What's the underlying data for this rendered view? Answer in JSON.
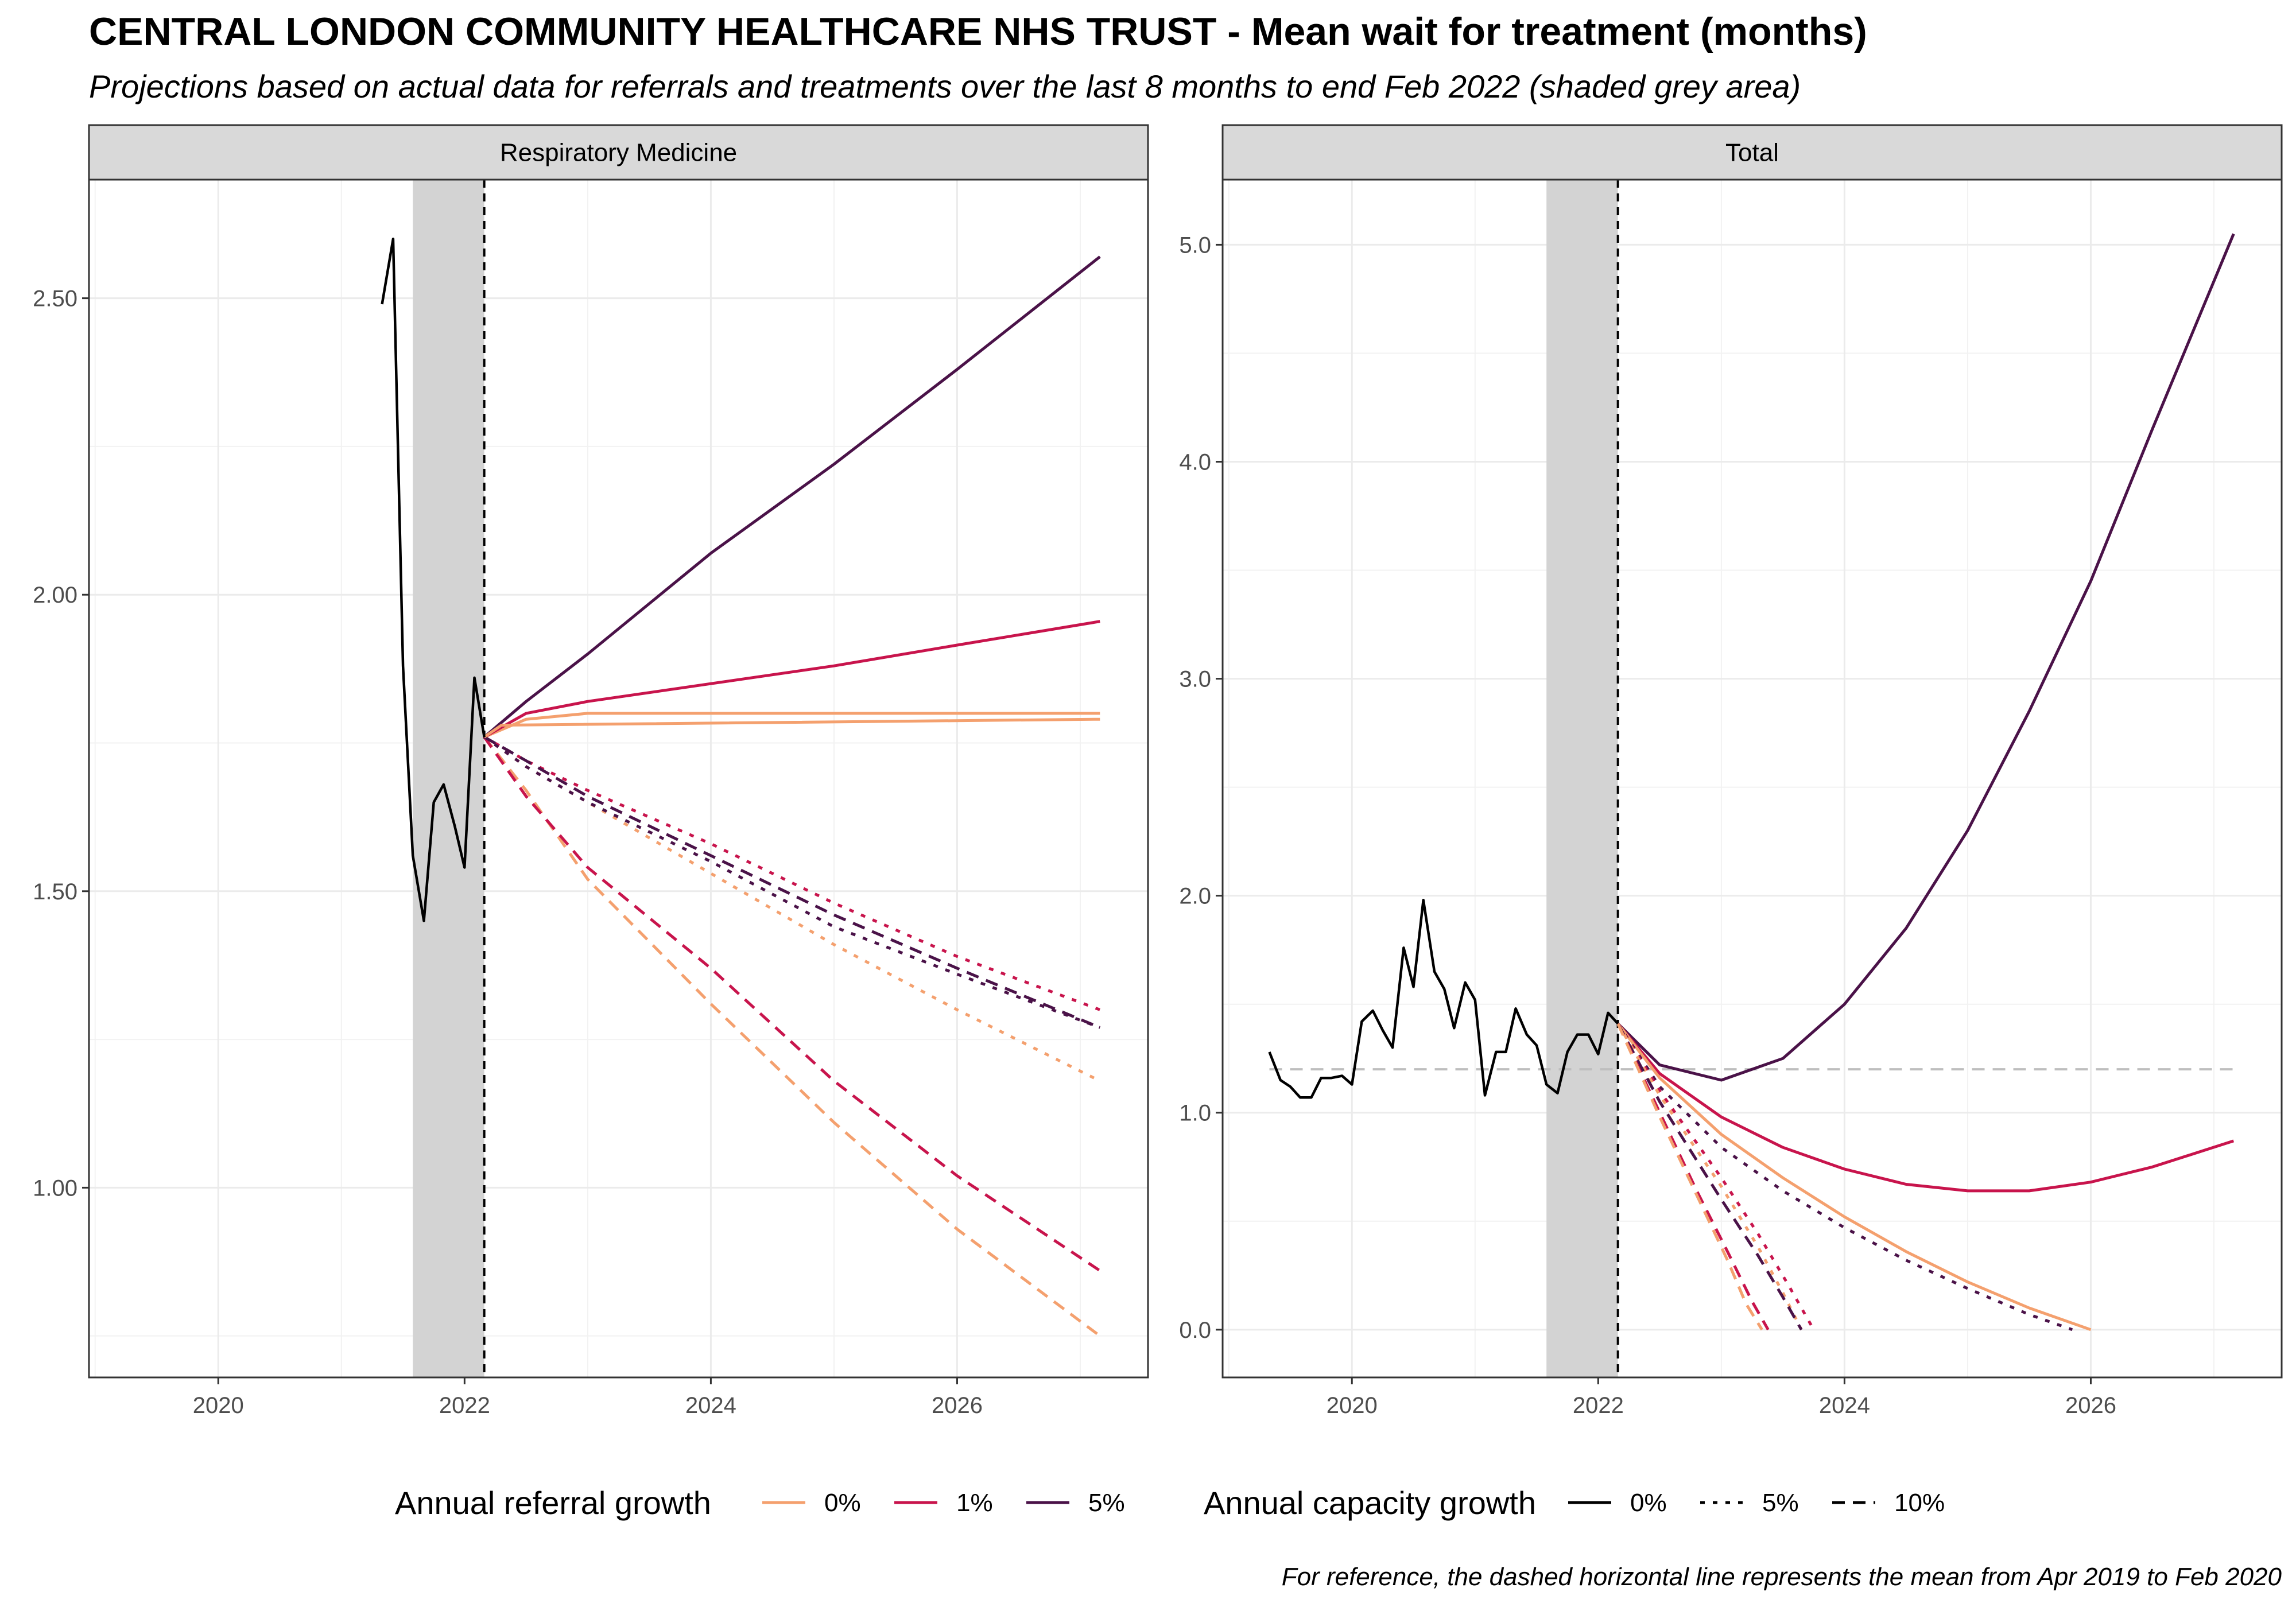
{
  "title": "CENTRAL LONDON COMMUNITY HEALTHCARE NHS TRUST - Mean wait for treatment (months)",
  "subtitle": "Projections based on actual data for referrals and treatments over the last 8 months to end Feb 2022 (shaded grey area)",
  "caption": "For reference, the dashed horizontal line represents the mean from Apr 2019 to Feb 2020",
  "colors": {
    "0%": "#F4A06E",
    "1%": "#C8144C",
    "5%": "#4A1248",
    "actual": "#000000",
    "shade": "#D3D3D3",
    "reference": "#BEBEBE"
  },
  "legends": {
    "referral": {
      "title": "Annual referral growth",
      "items": [
        "0%",
        "1%",
        "5%"
      ]
    },
    "capacity": {
      "title": "Annual capacity growth",
      "items": [
        "0%",
        "5%",
        "10%"
      ]
    }
  },
  "chart_data": [
    {
      "type": "line",
      "panel": "Respiratory Medicine",
      "xlabel": "",
      "ylabel": "",
      "xlim": [
        2018.95,
        2027.55
      ],
      "ylim": [
        0.68,
        2.7
      ],
      "xticks": [
        "2020",
        "2022",
        "2024",
        "2026"
      ],
      "xtick_values": [
        2020,
        2022,
        2024,
        2026
      ],
      "yticks": [
        "1.00",
        "1.50",
        "2.00",
        "2.50"
      ],
      "ytick_values": [
        1.0,
        1.5,
        2.0,
        2.5
      ],
      "shaded_period": [
        2021.58,
        2022.16
      ],
      "projection_start": 2022.16,
      "actual": {
        "x": [
          2021.33,
          2021.42,
          2021.5,
          2021.58,
          2021.67,
          2021.75,
          2021.83,
          2021.92,
          2022.0,
          2022.08,
          2022.16
        ],
        "y": [
          2.49,
          2.6,
          1.88,
          1.56,
          1.45,
          1.65,
          1.68,
          1.61,
          1.54,
          1.86,
          1.76
        ]
      },
      "series": [
        {
          "name": "0%",
          "capacity": "0%",
          "x": [
            2022.16,
            2022.5,
            2023,
            2024,
            2025,
            2026,
            2027.16
          ],
          "y": [
            1.76,
            1.79,
            1.8,
            1.8,
            1.8,
            1.8,
            1.8
          ]
        },
        {
          "name": "1%",
          "capacity": "0%",
          "x": [
            2022.16,
            2022.5,
            2023,
            2024,
            2025,
            2026,
            2027.16
          ],
          "y": [
            1.76,
            1.8,
            1.82,
            1.85,
            1.88,
            1.915,
            1.955
          ]
        },
        {
          "name": "5%",
          "capacity": "0%",
          "x": [
            2022.16,
            2022.5,
            2023,
            2024,
            2025,
            2026,
            2027.16
          ],
          "y": [
            1.76,
            1.82,
            1.9,
            2.07,
            2.22,
            2.38,
            2.57
          ]
        },
        {
          "name": "0%",
          "capacity": "5%",
          "x": [
            2022.16,
            2022.5,
            2023,
            2024,
            2025,
            2026,
            2027.16
          ],
          "y": [
            1.76,
            1.71,
            1.65,
            1.53,
            1.41,
            1.3,
            1.18
          ]
        },
        {
          "name": "1%",
          "capacity": "5%",
          "x": [
            2022.16,
            2022.5,
            2023,
            2024,
            2025,
            2026,
            2027.16
          ],
          "y": [
            1.76,
            1.72,
            1.67,
            1.58,
            1.48,
            1.39,
            1.3
          ]
        },
        {
          "name": "5%",
          "capacity": "5%",
          "x": [
            2022.16,
            2022.5,
            2023,
            2024,
            2025,
            2026,
            2027.16
          ],
          "y": [
            1.76,
            1.71,
            1.65,
            1.55,
            1.44,
            1.36,
            1.27
          ]
        },
        {
          "name": "0%",
          "capacity": "10%",
          "x": [
            2022.16,
            2022.5,
            2023,
            2024,
            2025,
            2026,
            2027.16
          ],
          "y": [
            1.76,
            1.67,
            1.52,
            1.31,
            1.11,
            0.93,
            0.75
          ]
        },
        {
          "name": "1%",
          "capacity": "10%",
          "x": [
            2022.16,
            2022.5,
            2023,
            2024,
            2025,
            2026,
            2027.16
          ],
          "y": [
            1.76,
            1.66,
            1.54,
            1.37,
            1.18,
            1.02,
            0.86
          ]
        },
        {
          "name": "5%",
          "capacity": "10%",
          "x": [
            2022.16,
            2022.5,
            2023,
            2024,
            2025,
            2026,
            2027.16
          ],
          "y": [
            1.76,
            1.72,
            1.66,
            1.56,
            1.46,
            1.37,
            1.27
          ]
        },
        {
          "name": "0%",
          "capacity": "0%",
          "x": [
            2022.16,
            2022.3,
            2027.16
          ],
          "y": [
            1.76,
            1.78,
            1.79
          ]
        }
      ]
    },
    {
      "type": "line",
      "panel": "Total",
      "xlabel": "",
      "ylabel": "",
      "xlim": [
        2018.95,
        2027.55
      ],
      "ylim": [
        -0.22,
        5.3
      ],
      "xticks": [
        "2020",
        "2022",
        "2024",
        "2026"
      ],
      "xtick_values": [
        2020,
        2022,
        2024,
        2026
      ],
      "yticks": [
        "0.0",
        "1.0",
        "2.0",
        "3.0",
        "4.0",
        "5.0"
      ],
      "ytick_values": [
        0,
        1,
        2,
        3,
        4,
        5
      ],
      "shaded_period": [
        2021.58,
        2022.16
      ],
      "projection_start": 2022.16,
      "reference_line": {
        "y": 1.2,
        "x": [
          2019.33,
          2027.16
        ]
      },
      "actual": {
        "x": [
          2019.33,
          2019.42,
          2019.5,
          2019.58,
          2019.67,
          2019.75,
          2019.83,
          2019.92,
          2020.0,
          2020.08,
          2020.17,
          2020.25,
          2020.33,
          2020.42,
          2020.5,
          2020.58,
          2020.67,
          2020.75,
          2020.83,
          2020.92,
          2021.0,
          2021.08,
          2021.17,
          2021.25,
          2021.33,
          2021.42,
          2021.5,
          2021.58,
          2021.67,
          2021.75,
          2021.83,
          2021.92,
          2022.0,
          2022.08,
          2022.16
        ],
        "y": [
          1.28,
          1.15,
          1.12,
          1.07,
          1.07,
          1.16,
          1.16,
          1.17,
          1.13,
          1.42,
          1.47,
          1.38,
          1.3,
          1.76,
          1.58,
          1.98,
          1.65,
          1.57,
          1.39,
          1.6,
          1.52,
          1.08,
          1.28,
          1.28,
          1.48,
          1.36,
          1.31,
          1.13,
          1.09,
          1.28,
          1.36,
          1.36,
          1.27,
          1.46,
          1.41
        ]
      },
      "series": [
        {
          "name": "5%",
          "capacity": "0%",
          "x": [
            2022.16,
            2022.5,
            2023,
            2023.5,
            2024,
            2024.5,
            2025,
            2025.5,
            2026,
            2026.5,
            2027.16
          ],
          "y": [
            1.41,
            1.22,
            1.15,
            1.25,
            1.5,
            1.85,
            2.3,
            2.85,
            3.45,
            4.15,
            5.05
          ]
        },
        {
          "name": "1%",
          "capacity": "0%",
          "x": [
            2022.16,
            2022.5,
            2023,
            2023.5,
            2024,
            2024.5,
            2025,
            2025.5,
            2026,
            2026.5,
            2027.16
          ],
          "y": [
            1.41,
            1.18,
            0.98,
            0.84,
            0.74,
            0.67,
            0.64,
            0.64,
            0.68,
            0.75,
            0.87
          ]
        },
        {
          "name": "0%",
          "capacity": "0%",
          "x": [
            2022.16,
            2022.5,
            2023,
            2023.5,
            2024,
            2024.5,
            2025,
            2025.5,
            2026
          ],
          "y": [
            1.41,
            1.16,
            0.9,
            0.7,
            0.52,
            0.36,
            0.22,
            0.1,
            0.0
          ]
        },
        {
          "name": "5%",
          "capacity": "5%",
          "x": [
            2022.16,
            2022.5,
            2023,
            2023.5,
            2024,
            2024.5,
            2025,
            2025.5,
            2025.85
          ],
          "y": [
            1.41,
            1.12,
            0.84,
            0.64,
            0.47,
            0.32,
            0.19,
            0.07,
            0.0
          ]
        },
        {
          "name": "1%",
          "capacity": "5%",
          "x": [
            2022.16,
            2022.5,
            2023,
            2023.3,
            2023.55,
            2023.75
          ],
          "y": [
            1.41,
            1.1,
            0.7,
            0.44,
            0.2,
            0.0
          ]
        },
        {
          "name": "0%",
          "capacity": "5%",
          "x": [
            2022.16,
            2022.5,
            2023,
            2023.3,
            2023.5,
            2023.65
          ],
          "y": [
            1.41,
            1.08,
            0.66,
            0.38,
            0.17,
            0.0
          ]
        },
        {
          "name": "5%",
          "capacity": "10%",
          "x": [
            2022.16,
            2022.5,
            2023,
            2023.3,
            2023.5,
            2023.65
          ],
          "y": [
            1.41,
            1.05,
            0.6,
            0.34,
            0.15,
            0.0
          ]
        },
        {
          "name": "1%",
          "capacity": "10%",
          "x": [
            2022.16,
            2022.5,
            2022.8,
            2023.05,
            2023.25,
            2023.38
          ],
          "y": [
            1.41,
            1.0,
            0.64,
            0.36,
            0.13,
            0.0
          ]
        },
        {
          "name": "0%",
          "capacity": "10%",
          "x": [
            2022.16,
            2022.5,
            2022.8,
            2023.05,
            2023.2,
            2023.33
          ],
          "y": [
            1.41,
            0.98,
            0.62,
            0.32,
            0.12,
            0.0
          ]
        }
      ]
    }
  ]
}
